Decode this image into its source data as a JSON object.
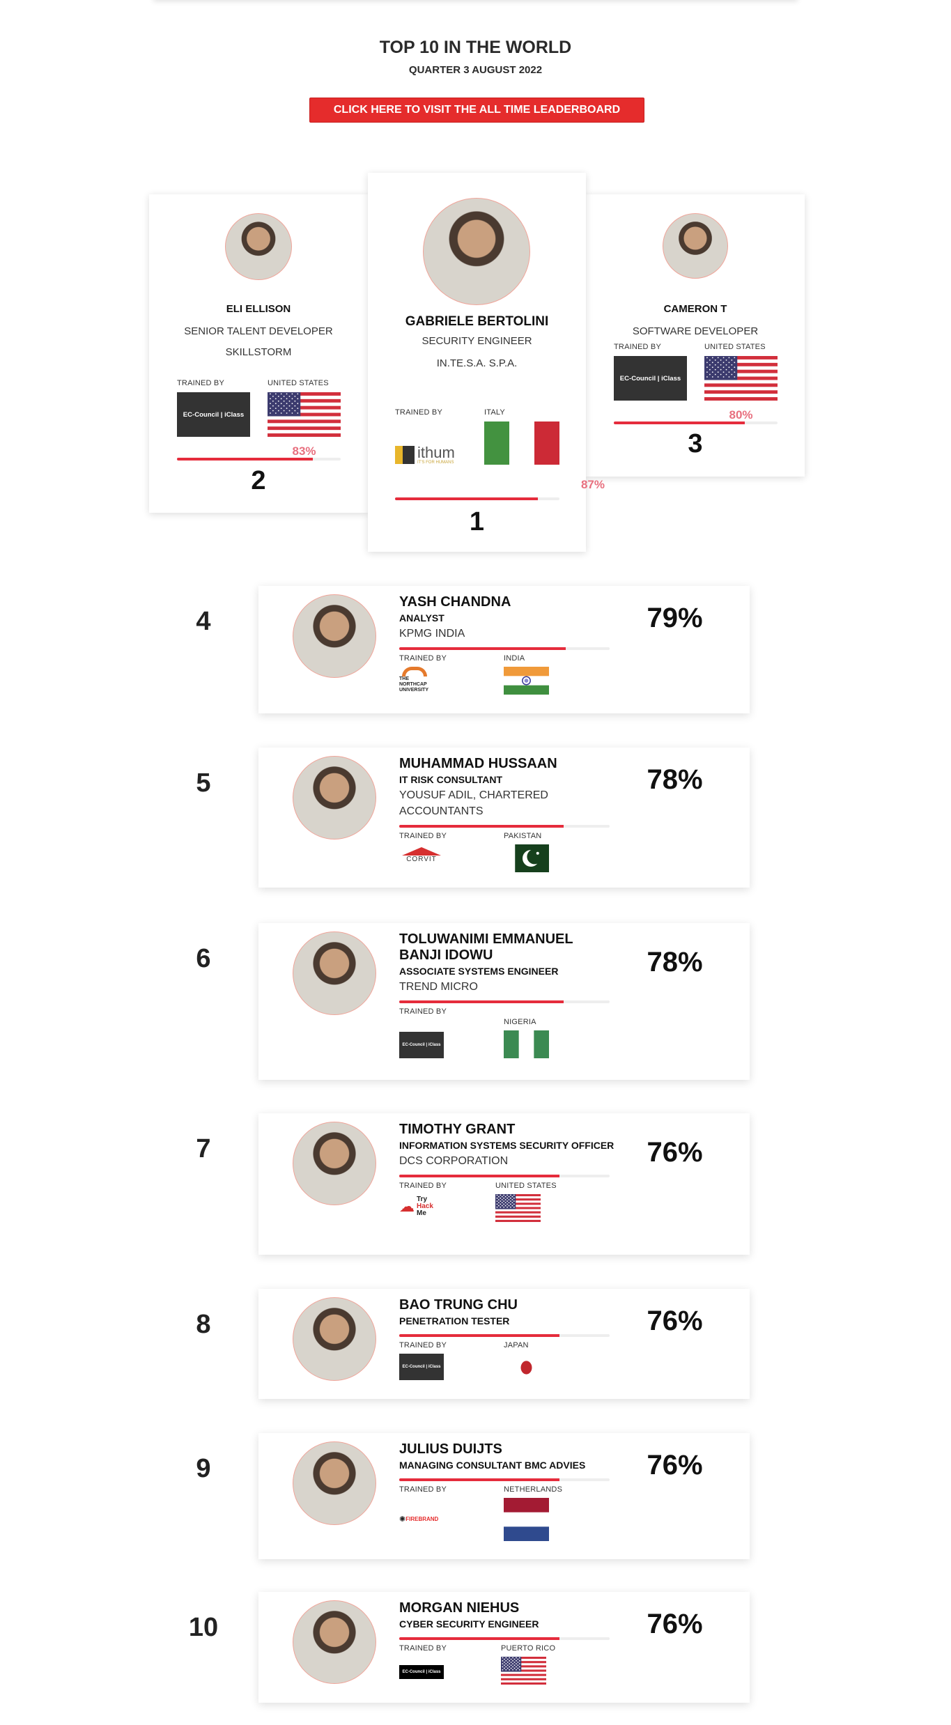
{
  "header": {
    "title": "TOP 10 IN THE WORLD",
    "subtitle": "QUARTER 3 AUGUST 2022",
    "cta_label": "CLICK HERE TO VISIT THE ALL TIME LEADERBOARD"
  },
  "colors": {
    "accent": "#e52c2c",
    "bar": "#e52c3c",
    "percent_pink": "#e8707f",
    "avatar_border": "#f0a499"
  },
  "trained_by_label": "TRAINED BY",
  "podium": [
    {
      "rank": "1",
      "name": "GABRIELE BERTOLINI",
      "title": "SECURITY ENGINEER",
      "company": "IN.TE.S.A. S.P.A.",
      "country": "ITALY",
      "flag": "italy",
      "trainer": "ithum",
      "trainer_text": "ithum IT'S FOR HUMANS",
      "percent": "87%",
      "score": 87
    },
    {
      "rank": "2",
      "name": "ELI ELLISON",
      "title": "SENIOR TALENT DEVELOPER",
      "company": "SKILLSTORM",
      "country": "UNITED STATES",
      "flag": "us",
      "trainer": "ec-council",
      "trainer_text": "EC-Council | iClass",
      "percent": "83%",
      "score": 83
    },
    {
      "rank": "3",
      "name": "CAMERON T",
      "title": "SOFTWARE DEVELOPER",
      "company": "",
      "country": "UNITED STATES",
      "flag": "us",
      "trainer": "ec-council",
      "trainer_text": "EC-Council | iClass",
      "percent": "80%",
      "score": 80
    }
  ],
  "list": [
    {
      "rank": "4",
      "name": "YASH CHANDNA",
      "role": "ANALYST",
      "company": "KPMG INDIA",
      "country": "INDIA",
      "flag": "india",
      "trainer": "northcap",
      "trainer_text": "THE NORTHCAP UNIVERSITY",
      "percent": "79%",
      "score": 79
    },
    {
      "rank": "5",
      "name": "MUHAMMAD HUSSAAN",
      "role": "IT RISK CONSULTANT",
      "company": "YOUSUF ADIL, CHARTERED ACCOUNTANTS",
      "country": "PAKISTAN",
      "flag": "pakistan",
      "trainer": "corvit",
      "trainer_text": "CORVIT",
      "percent": "78%",
      "score": 78
    },
    {
      "rank": "6",
      "name": "TOLUWANIMI EMMANUEL BANJI IDOWU",
      "role": "ASSOCIATE SYSTEMS ENGINEER",
      "company": "TREND MICRO",
      "country": "NIGERIA",
      "flag": "nigeria",
      "trainer": "ec-council",
      "trainer_text": "EC-Council | iClass",
      "percent": "78%",
      "score": 78
    },
    {
      "rank": "7",
      "name": "TIMOTHY GRANT",
      "role": "INFORMATION SYSTEMS SECURITY OFFICER",
      "company": "DCS CORPORATION",
      "country": "UNITED STATES",
      "flag": "us",
      "trainer": "tryhackme",
      "trainer_text": "Try Hack Me",
      "percent": "76%",
      "score": 76
    },
    {
      "rank": "8",
      "name": "BAO TRUNG CHU",
      "role": "PENETRATION TESTER",
      "company": "",
      "country": "JAPAN",
      "flag": "japan",
      "trainer": "ec-council",
      "trainer_text": "EC-Council | iClass",
      "percent": "76%",
      "score": 76
    },
    {
      "rank": "9",
      "name": "JULIUS DUIJTS",
      "role": "MANAGING CONSULTANT BMC ADVIES",
      "company": "",
      "country": "NETHERLANDS",
      "flag": "netherlands",
      "trainer": "firebrand",
      "trainer_text": "FIREBRAND",
      "percent": "76%",
      "score": 76
    },
    {
      "rank": "10",
      "name": "MORGAN NIEHUS",
      "role": "CYBER SECURITY ENGINEER",
      "company": "",
      "country": "PUERTO RICO",
      "flag": "us",
      "trainer": "ec-council-black",
      "trainer_text": "EC-Council | iClass",
      "percent": "76%",
      "score": 76
    }
  ]
}
